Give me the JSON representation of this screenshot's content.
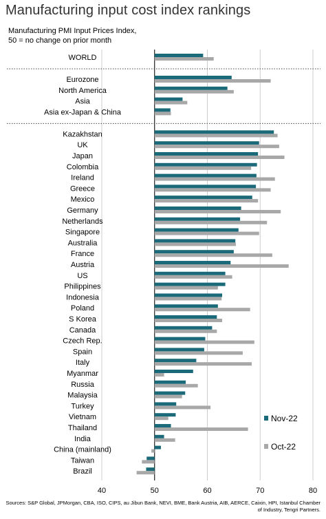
{
  "title": "Manufacturing input cost index rankings",
  "subtitle": "Manufacturing PMI Input Prices Index,\n50 = no change on prior month",
  "source": "Sources: S&P Global, JPMorgan, CBA, ISO, CIPS, au Jibun Bank, NEVI, BME, Bank Austria, AIB, AERCE, Caixin, HPI, Istanbul Chamber of Industry, Tengri Partners.",
  "chart_data": {
    "type": "bar",
    "orientation": "horizontal",
    "title": "Manufacturing input cost index rankings",
    "xlim": [
      40,
      80
    ],
    "xticks": [
      "40",
      "50",
      "60",
      "70",
      "80"
    ],
    "grid": true,
    "legend_position": "bottom-right",
    "colors": {
      "nov": "#1a6a7a",
      "oct": "#a8a8a8"
    },
    "categories": [
      "WORLD",
      "Eurozone",
      "North America",
      "Asia",
      "Asia ex-Japan & China",
      "Kazakhstan",
      "UK",
      "Japan",
      "Colombia",
      "Ireland",
      "Greece",
      "Mexico",
      "Germany",
      "Netherlands",
      "Singapore",
      "Australia",
      "France",
      "Austria",
      "US",
      "Philippines",
      "Indonesia",
      "Poland",
      "S Korea",
      "Canada",
      "Czech Rep.",
      "Spain",
      "Italy",
      "Myanmar",
      "Russia",
      "Malaysia",
      "Turkey",
      "Vietnam",
      "Thailand",
      "India",
      "China (mainland)",
      "Taiwan",
      "Brazil"
    ],
    "group_ends": [
      0,
      4
    ],
    "series": [
      {
        "name": "Nov-22",
        "values": [
          59.2,
          64.6,
          63.8,
          55.3,
          53.0,
          72.6,
          69.8,
          69.6,
          69.4,
          69.3,
          69.2,
          68.5,
          66.4,
          66.2,
          65.9,
          65.3,
          65.0,
          64.4,
          63.4,
          63.4,
          62.8,
          62.0,
          61.8,
          60.9,
          59.6,
          59.4,
          57.9,
          57.3,
          55.9,
          55.8,
          54.1,
          54.0,
          53.1,
          51.8,
          51.2,
          48.5,
          48.4
        ]
      },
      {
        "name": "Oct-22",
        "values": [
          61.2,
          72.0,
          65.0,
          56.2,
          53.1,
          73.3,
          73.6,
          74.6,
          68.3,
          72.8,
          72.0,
          69.6,
          73.9,
          71.3,
          69.8,
          65.4,
          72.3,
          75.4,
          64.7,
          62.0,
          62.7,
          68.1,
          62.8,
          61.8,
          68.9,
          66.7,
          68.4,
          51.8,
          58.2,
          55.2,
          60.6,
          52.6,
          67.7,
          53.9,
          49.4,
          47.6,
          46.6
        ]
      }
    ]
  }
}
